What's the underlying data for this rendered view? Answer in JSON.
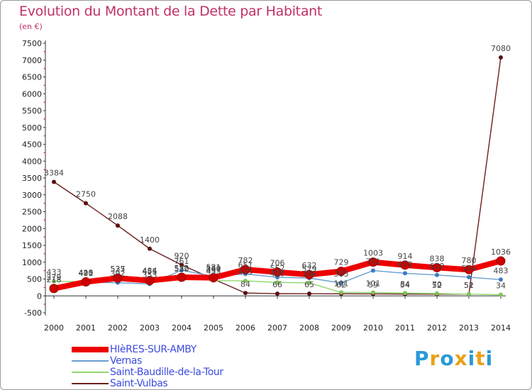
{
  "header": {
    "title": "Evolution du Montant de la Dette par Habitant",
    "unit": "(en €)"
  },
  "logo": {
    "text": "Proxiti",
    "colors": [
      "#2a9ad8",
      "#e8a21c",
      "#2a9ad8",
      "#e8a21c",
      "#2a9ad8",
      "#e8a21c",
      "#2a9ad8"
    ]
  },
  "chart_data": {
    "type": "line",
    "title": "Evolution du Montant de la Dette par Habitant",
    "ylabel": "(en €)",
    "xlabel": "",
    "ylim": [
      -500,
      7500
    ],
    "yticks": [
      "-500",
      "0",
      "500",
      "1000",
      "1500",
      "2000",
      "2500",
      "3000",
      "3500",
      "4000",
      "4500",
      "5000",
      "5500",
      "6000",
      "6500",
      "7000",
      "7500"
    ],
    "grid": false,
    "legend_position": "bottom-left",
    "x": [
      "2000",
      "2001",
      "2002",
      "2003",
      "2004",
      "2005",
      "2006",
      "2007",
      "2008",
      "2009",
      "2010",
      "2011",
      "2012",
      "2013",
      "2014"
    ],
    "series": [
      {
        "name": "Saint-Vulbas",
        "color": "#6b1f1f",
        "marker": "#5a1010",
        "values": [
          3384,
          2750,
          2088,
          1400,
          920,
          497,
          84,
          66,
          65,
          62,
          59,
          54,
          52,
          51,
          7080
        ],
        "labels": [
          "3384",
          "2750",
          "2088",
          "1400",
          "920",
          "497",
          "84",
          "66",
          "65",
          "62",
          "59",
          "54",
          "52",
          "51",
          "7080"
        ]
      },
      {
        "name": "Saint-Baudille-de-la-Tour",
        "color": "#90d86e",
        "marker": "#7cc45a",
        "values": [
          433,
          420,
          535,
          484,
          530,
          455,
          445,
          400,
          386,
          101,
          101,
          84,
          70,
          52,
          34
        ],
        "labels": [
          "433",
          "420",
          "535",
          "484",
          "530",
          "455",
          "445",
          "400",
          "386",
          "101",
          "101",
          "84",
          "70",
          "52",
          "34"
        ]
      },
      {
        "name": "Vernas",
        "color": "#6a9fd0",
        "marker": "#3a7cc0",
        "values": [
          279,
          401,
          392,
          353,
          761,
          581,
          651,
          552,
          529,
          383,
          751,
          670,
          620,
          554,
          483
        ],
        "labels": [
          "279",
          "401",
          "392",
          "353",
          "761",
          "581",
          "651",
          "552",
          "529",
          "383",
          "751",
          "670",
          "620",
          "554",
          "483"
        ]
      },
      {
        "name": "HIèRES-SUR-AMBY",
        "color": "#ee0000",
        "marker": "#cc0000",
        "values": [
          218,
          415,
          527,
          455,
          552,
          540,
          782,
          706,
          632,
          729,
          1003,
          914,
          838,
          780,
          1036
        ],
        "labels": [
          "218",
          "415",
          "527",
          "455",
          "552",
          "540",
          "782",
          "706",
          "632",
          "729",
          "1003",
          "914",
          "838",
          "780",
          "1036"
        ]
      }
    ]
  },
  "legend": [
    {
      "label": "HIèRES-SUR-AMBY",
      "color": "#ee0000"
    },
    {
      "label": "Vernas",
      "color": "#6a9fd0"
    },
    {
      "label": "Saint-Baudille-de-la-Tour",
      "color": "#90d86e"
    },
    {
      "label": "Saint-Vulbas",
      "color": "#6b1f1f"
    }
  ]
}
